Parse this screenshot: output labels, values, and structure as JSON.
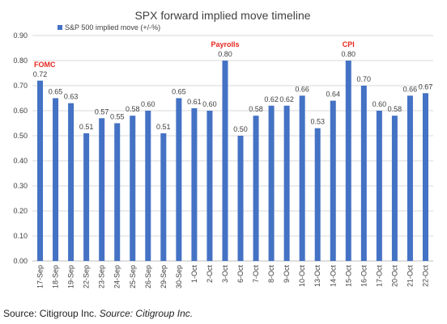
{
  "chart_data": {
    "type": "bar",
    "title": "SPX forward implied move timeline",
    "legend": "S&P 500 implied move (+/-%)",
    "legend_position": "top-left",
    "bar_color": "#4472c4",
    "annotation_color": "#e8261f",
    "ylim": [
      0,
      0.9
    ],
    "yticks": [
      "0.00",
      "0.10",
      "0.20",
      "0.30",
      "0.40",
      "0.50",
      "0.60",
      "0.70",
      "0.80",
      "0.90"
    ],
    "grid": true,
    "categories": [
      "17-Sep",
      "18-Sep",
      "19-Sep",
      "22-Sep",
      "23-Sep",
      "24-Sep",
      "25-Sep",
      "26-Sep",
      "29-Sep",
      "30-Sep",
      "1-Oct",
      "2-Oct",
      "3-Oct",
      "6-Oct",
      "7-Oct",
      "8-Oct",
      "9-Oct",
      "10-Oct",
      "13-Oct",
      "14-Oct",
      "15-Oct",
      "16-Oct",
      "17-Oct",
      "20-Oct",
      "21-Oct",
      "22-Oct"
    ],
    "values": [
      0.72,
      0.65,
      0.63,
      0.51,
      0.57,
      0.55,
      0.58,
      0.6,
      0.51,
      0.65,
      0.61,
      0.6,
      0.8,
      0.5,
      0.58,
      0.62,
      0.62,
      0.66,
      0.53,
      0.64,
      0.8,
      0.7,
      0.6,
      0.58,
      0.66,
      0.67
    ],
    "data_labels": [
      "0.72",
      "0.65",
      "0.63",
      "0.51",
      "0.57",
      "0.55",
      "0.58",
      "0.60",
      "0.51",
      "0.65",
      "0.61",
      "0.60",
      "0.80",
      "0.50",
      "0.58",
      "0.62",
      "0.62",
      "0.66",
      "0.53",
      "0.64",
      "0.80",
      "0.70",
      "0.60",
      "0.58",
      "0.66",
      "0.67"
    ],
    "annotations": [
      {
        "index": 0,
        "text": "FOMC"
      },
      {
        "index": 12,
        "text": "Payrolls"
      },
      {
        "index": 20,
        "text": "CPI"
      }
    ]
  },
  "source": {
    "prefix": "Source: Citigroup Inc. ",
    "italic": "Source: Citigroup Inc."
  }
}
